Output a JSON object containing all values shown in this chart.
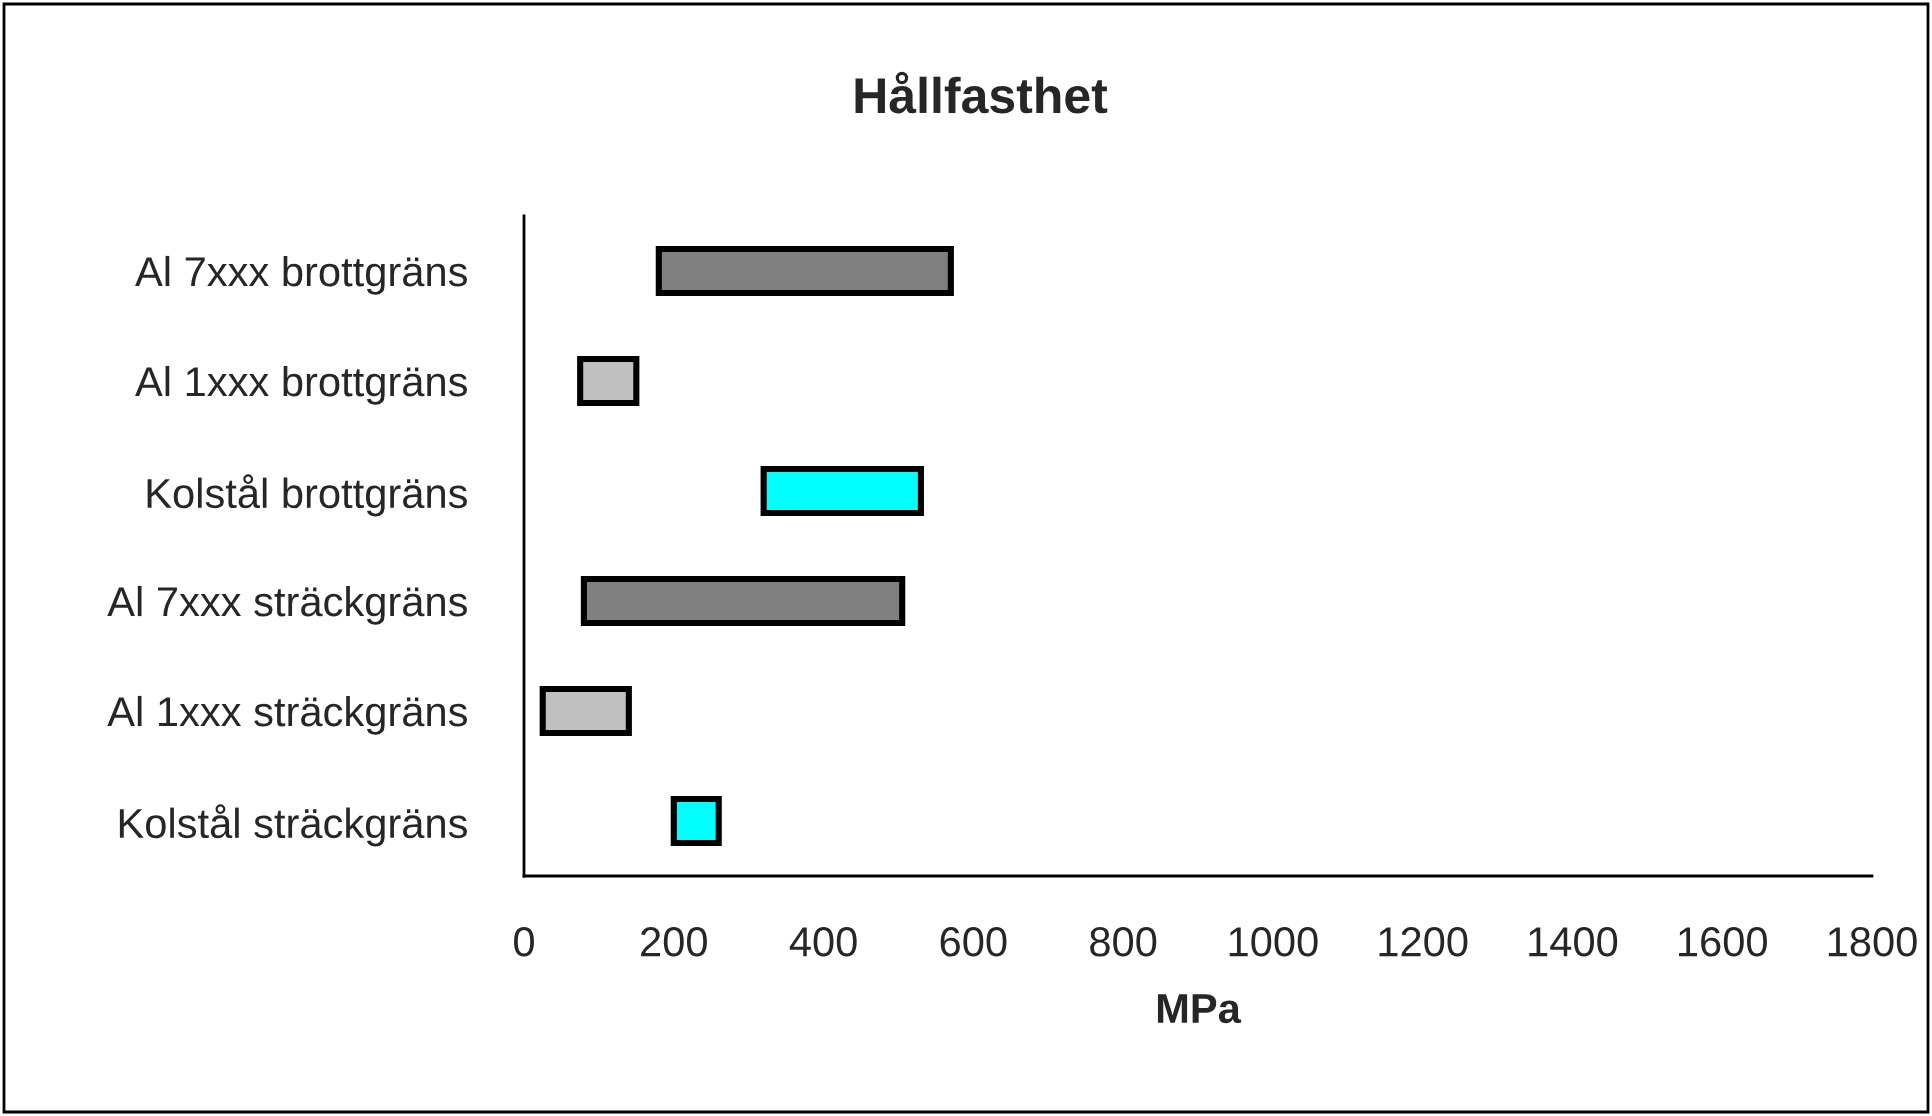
{
  "chart_data": {
    "type": "bar",
    "orientation": "horizontal",
    "title": "Hållfasthet",
    "xlabel": "MPa",
    "categories": [
      "Al 7xxx brottgräns",
      "Al 1xxx brottgräns",
      "Kolstål brottgräns",
      "Al 7xxx sträckgräns",
      "Al 1xxx sträckgräns",
      "Kolstål sträckgräns"
    ],
    "base": [
      180,
      75,
      320,
      80,
      25,
      200
    ],
    "values": [
      390,
      75,
      210,
      425,
      115,
      60
    ],
    "colors": [
      "#808080",
      "#c0c0c0",
      "#00ffff",
      "#808080",
      "#c0c0c0",
      "#00ffff"
    ],
    "xlim": [
      0,
      1800
    ],
    "xticks": [
      0,
      200,
      400,
      600,
      800,
      1000,
      1200,
      1400,
      1600,
      1800
    ],
    "grid": false,
    "legend": false
  }
}
